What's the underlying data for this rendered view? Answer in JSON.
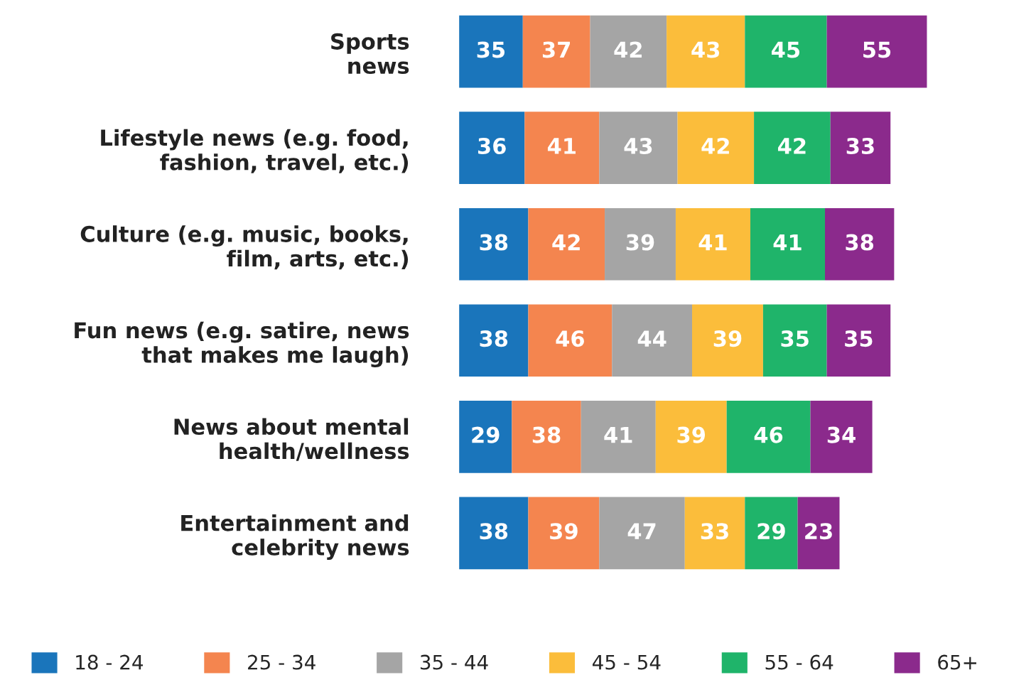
{
  "chart_data": {
    "type": "bar",
    "orientation": "horizontal",
    "stacked": true,
    "data_labels": true,
    "legend": "bottom",
    "grid": false,
    "categories": [
      "Sports\nnews",
      "Lifestyle news (e.g. food,\nfashion, travel, etc.)",
      "Culture (e.g. music, books,\nfilm, arts, etc.)",
      "Fun news (e.g. satire, news\nthat makes me laugh)",
      "News about mental\nhealth/wellness",
      "Entertainment and\ncelebrity news"
    ],
    "series": [
      {
        "name": "18 - 24",
        "color": "#1a75bb",
        "values": [
          35,
          36,
          38,
          38,
          29,
          38
        ]
      },
      {
        "name": "25 - 34",
        "color": "#f4854f",
        "values": [
          37,
          41,
          42,
          46,
          38,
          39
        ]
      },
      {
        "name": "35 - 44",
        "color": "#a5a5a5",
        "values": [
          42,
          43,
          39,
          44,
          41,
          47
        ]
      },
      {
        "name": "45 - 54",
        "color": "#fbbd3b",
        "values": [
          43,
          42,
          41,
          39,
          39,
          33
        ]
      },
      {
        "name": "55 - 64",
        "color": "#1fb46a",
        "values": [
          45,
          42,
          41,
          35,
          46,
          29
        ]
      },
      {
        "name": "65+",
        "color": "#8b2a8c",
        "values": [
          55,
          33,
          38,
          35,
          34,
          23
        ]
      }
    ]
  }
}
